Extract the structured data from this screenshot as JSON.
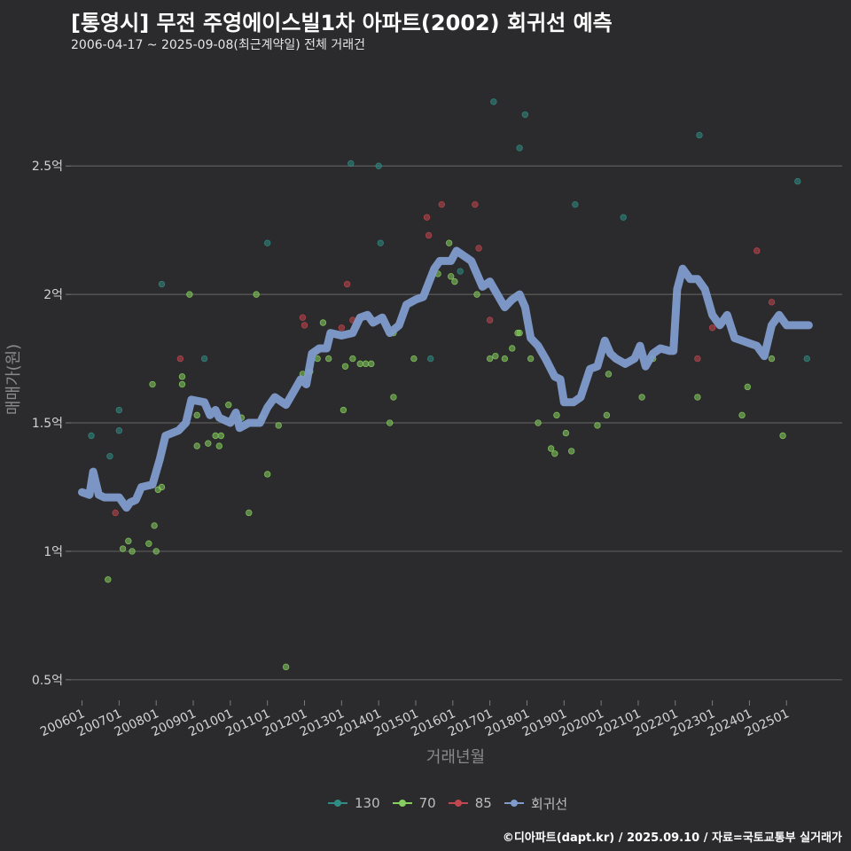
{
  "header": {
    "title": "[통영시] 무전 주영에이스빌1차 아파트(2002) 회귀선 예측",
    "subtitle": "2006-04-17 ~ 2025-09-08(최근계약일) 전체 거래건"
  },
  "caption": "©디아파트(dapt.kr) / 2025.09.10 / 자료=국토교통부 실거래가",
  "colors": {
    "background": "#2b2a2c",
    "grid": "#5c5c5c",
    "s130": "#2f8c84",
    "s70": "#86cf5e",
    "s85": "#c0464f",
    "regression": "#7f9ccc"
  },
  "chart_data": {
    "type": "scatter",
    "xlabel": "거래년월",
    "ylabel": "매매가(원)",
    "xlim": [
      2005.7,
      2026.5
    ],
    "ylim": [
      0.42,
      2.87
    ],
    "grid": true,
    "legend_position": "bottom",
    "x_ticks": [
      {
        "x": 2006.0,
        "label": "200601"
      },
      {
        "x": 2007.0,
        "label": "200701"
      },
      {
        "x": 2008.0,
        "label": "200801"
      },
      {
        "x": 2009.0,
        "label": "200901"
      },
      {
        "x": 2010.0,
        "label": "201001"
      },
      {
        "x": 2011.0,
        "label": "201101"
      },
      {
        "x": 2012.0,
        "label": "201201"
      },
      {
        "x": 2013.0,
        "label": "201301"
      },
      {
        "x": 2014.0,
        "label": "201401"
      },
      {
        "x": 2015.0,
        "label": "201501"
      },
      {
        "x": 2016.0,
        "label": "201601"
      },
      {
        "x": 2017.0,
        "label": "201701"
      },
      {
        "x": 2018.0,
        "label": "201801"
      },
      {
        "x": 2019.0,
        "label": "201901"
      },
      {
        "x": 2020.0,
        "label": "202001"
      },
      {
        "x": 2021.0,
        "label": "202101"
      },
      {
        "x": 2022.0,
        "label": "202201"
      },
      {
        "x": 2023.0,
        "label": "202301"
      },
      {
        "x": 2024.0,
        "label": "202401"
      },
      {
        "x": 2025.0,
        "label": "202501"
      }
    ],
    "y_ticks": [
      {
        "y": 0.5,
        "label": "0.5억"
      },
      {
        "y": 1.0,
        "label": "1억"
      },
      {
        "y": 1.5,
        "label": "1.5억"
      },
      {
        "y": 2.0,
        "label": "2억"
      },
      {
        "y": 2.5,
        "label": "2.5억"
      }
    ],
    "series": [
      {
        "name": "130",
        "color": "#2f8c84",
        "points": [
          [
            2006.25,
            1.45
          ],
          [
            2006.75,
            1.37
          ],
          [
            2007.0,
            1.55
          ],
          [
            2007.0,
            1.47
          ],
          [
            2009.3,
            1.75
          ],
          [
            2011.0,
            2.2
          ],
          [
            2013.25,
            2.51
          ],
          [
            2014.0,
            2.5
          ],
          [
            2014.05,
            2.2
          ],
          [
            2015.4,
            1.75
          ],
          [
            2017.1,
            2.75
          ],
          [
            2017.8,
            2.57
          ],
          [
            2017.95,
            2.7
          ],
          [
            2019.3,
            2.35
          ],
          [
            2020.6,
            2.3
          ],
          [
            2022.65,
            2.62
          ],
          [
            2025.3,
            2.44
          ],
          [
            2025.55,
            1.75
          ],
          [
            2008.15,
            2.04
          ],
          [
            2016.2,
            2.09
          ]
        ]
      },
      {
        "name": "70",
        "color": "#86cf5e",
        "points": [
          [
            2006.7,
            0.89
          ],
          [
            2007.1,
            1.01
          ],
          [
            2007.25,
            1.04
          ],
          [
            2007.35,
            1.0
          ],
          [
            2007.8,
            1.03
          ],
          [
            2007.95,
            1.1
          ],
          [
            2008.0,
            1.0
          ],
          [
            2008.05,
            1.24
          ],
          [
            2008.15,
            1.25
          ],
          [
            2007.9,
            1.65
          ],
          [
            2008.7,
            1.68
          ],
          [
            2008.7,
            1.65
          ],
          [
            2008.9,
            2.0
          ],
          [
            2009.1,
            1.41
          ],
          [
            2009.1,
            1.53
          ],
          [
            2009.4,
            1.42
          ],
          [
            2009.6,
            1.45
          ],
          [
            2009.7,
            1.41
          ],
          [
            2009.75,
            1.45
          ],
          [
            2009.95,
            1.57
          ],
          [
            2010.3,
            1.52
          ],
          [
            2010.5,
            1.15
          ],
          [
            2010.7,
            2.0
          ],
          [
            2010.85,
            1.52
          ],
          [
            2011.0,
            1.3
          ],
          [
            2011.3,
            1.49
          ],
          [
            2011.5,
            0.55
          ],
          [
            2011.95,
            1.69
          ],
          [
            2012.15,
            1.7
          ],
          [
            2012.35,
            1.75
          ],
          [
            2012.5,
            1.89
          ],
          [
            2012.65,
            1.75
          ],
          [
            2013.05,
            1.55
          ],
          [
            2013.1,
            1.72
          ],
          [
            2013.3,
            1.75
          ],
          [
            2013.5,
            1.73
          ],
          [
            2013.65,
            1.73
          ],
          [
            2013.8,
            1.73
          ],
          [
            2014.3,
            1.5
          ],
          [
            2014.4,
            1.85
          ],
          [
            2014.4,
            1.6
          ],
          [
            2014.95,
            1.75
          ],
          [
            2015.6,
            2.08
          ],
          [
            2015.9,
            2.2
          ],
          [
            2015.95,
            2.07
          ],
          [
            2016.05,
            2.05
          ],
          [
            2016.65,
            2.0
          ],
          [
            2017.0,
            1.75
          ],
          [
            2017.15,
            1.76
          ],
          [
            2017.4,
            1.75
          ],
          [
            2017.6,
            1.79
          ],
          [
            2017.75,
            1.85
          ],
          [
            2017.8,
            1.85
          ],
          [
            2018.1,
            1.75
          ],
          [
            2018.3,
            1.5
          ],
          [
            2018.65,
            1.4
          ],
          [
            2018.75,
            1.38
          ],
          [
            2018.8,
            1.53
          ],
          [
            2019.05,
            1.46
          ],
          [
            2019.2,
            1.39
          ],
          [
            2019.9,
            1.49
          ],
          [
            2020.15,
            1.53
          ],
          [
            2020.2,
            1.69
          ],
          [
            2021.1,
            1.6
          ],
          [
            2022.6,
            1.6
          ],
          [
            2023.8,
            1.53
          ],
          [
            2023.95,
            1.64
          ],
          [
            2024.6,
            1.75
          ],
          [
            2024.9,
            1.45
          ],
          [
            2021.4,
            1.75
          ]
        ]
      },
      {
        "name": "85",
        "color": "#c0464f",
        "points": [
          [
            2006.9,
            1.15
          ],
          [
            2008.65,
            1.75
          ],
          [
            2011.95,
            1.91
          ],
          [
            2012.0,
            1.88
          ],
          [
            2012.35,
            1.78
          ],
          [
            2013.0,
            1.87
          ],
          [
            2013.15,
            2.04
          ],
          [
            2013.3,
            1.9
          ],
          [
            2015.3,
            2.3
          ],
          [
            2015.35,
            2.23
          ],
          [
            2015.7,
            2.35
          ],
          [
            2016.6,
            2.35
          ],
          [
            2016.7,
            2.18
          ],
          [
            2017.0,
            1.9
          ],
          [
            2022.6,
            1.75
          ],
          [
            2024.2,
            2.17
          ],
          [
            2024.6,
            1.97
          ],
          [
            2023.0,
            1.87
          ]
        ]
      }
    ],
    "regression": {
      "name": "회귀선",
      "color": "#7f9ccc",
      "points": [
        [
          2006.0,
          1.23
        ],
        [
          2006.2,
          1.22
        ],
        [
          2006.3,
          1.31
        ],
        [
          2006.45,
          1.22
        ],
        [
          2006.6,
          1.21
        ],
        [
          2007.0,
          1.21
        ],
        [
          2007.2,
          1.17
        ],
        [
          2007.3,
          1.19
        ],
        [
          2007.45,
          1.2
        ],
        [
          2007.6,
          1.25
        ],
        [
          2007.9,
          1.26
        ],
        [
          2008.1,
          1.36
        ],
        [
          2008.25,
          1.45
        ],
        [
          2008.6,
          1.47
        ],
        [
          2008.8,
          1.5
        ],
        [
          2008.95,
          1.59
        ],
        [
          2009.3,
          1.58
        ],
        [
          2009.45,
          1.53
        ],
        [
          2009.6,
          1.55
        ],
        [
          2009.7,
          1.52
        ],
        [
          2010.0,
          1.5
        ],
        [
          2010.15,
          1.54
        ],
        [
          2010.25,
          1.48
        ],
        [
          2010.5,
          1.5
        ],
        [
          2010.8,
          1.5
        ],
        [
          2011.0,
          1.56
        ],
        [
          2011.2,
          1.6
        ],
        [
          2011.5,
          1.57
        ],
        [
          2011.7,
          1.62
        ],
        [
          2011.9,
          1.67
        ],
        [
          2012.05,
          1.65
        ],
        [
          2012.2,
          1.77
        ],
        [
          2012.4,
          1.79
        ],
        [
          2012.6,
          1.79
        ],
        [
          2012.7,
          1.85
        ],
        [
          2013.0,
          1.84
        ],
        [
          2013.3,
          1.85
        ],
        [
          2013.5,
          1.91
        ],
        [
          2013.7,
          1.92
        ],
        [
          2013.85,
          1.89
        ],
        [
          2014.1,
          1.91
        ],
        [
          2014.3,
          1.85
        ],
        [
          2014.55,
          1.88
        ],
        [
          2014.75,
          1.96
        ],
        [
          2015.0,
          1.98
        ],
        [
          2015.2,
          1.99
        ],
        [
          2015.5,
          2.1
        ],
        [
          2015.65,
          2.13
        ],
        [
          2015.95,
          2.13
        ],
        [
          2016.1,
          2.17
        ],
        [
          2016.3,
          2.15
        ],
        [
          2016.5,
          2.13
        ],
        [
          2016.65,
          2.08
        ],
        [
          2016.8,
          2.03
        ],
        [
          2017.0,
          2.05
        ],
        [
          2017.2,
          2.0
        ],
        [
          2017.4,
          1.95
        ],
        [
          2017.6,
          1.98
        ],
        [
          2017.8,
          2.0
        ],
        [
          2017.95,
          1.95
        ],
        [
          2018.1,
          1.83
        ],
        [
          2018.3,
          1.8
        ],
        [
          2018.5,
          1.75
        ],
        [
          2018.75,
          1.68
        ],
        [
          2018.9,
          1.67
        ],
        [
          2019.0,
          1.58
        ],
        [
          2019.25,
          1.58
        ],
        [
          2019.45,
          1.6
        ],
        [
          2019.7,
          1.71
        ],
        [
          2019.9,
          1.72
        ],
        [
          2020.1,
          1.82
        ],
        [
          2020.25,
          1.77
        ],
        [
          2020.4,
          1.75
        ],
        [
          2020.65,
          1.73
        ],
        [
          2020.9,
          1.75
        ],
        [
          2021.05,
          1.8
        ],
        [
          2021.2,
          1.72
        ],
        [
          2021.4,
          1.77
        ],
        [
          2021.6,
          1.79
        ],
        [
          2021.85,
          1.78
        ],
        [
          2021.95,
          1.78
        ],
        [
          2022.05,
          2.02
        ],
        [
          2022.2,
          2.1
        ],
        [
          2022.4,
          2.06
        ],
        [
          2022.6,
          2.06
        ],
        [
          2022.8,
          2.02
        ],
        [
          2023.0,
          1.92
        ],
        [
          2023.2,
          1.88
        ],
        [
          2023.4,
          1.92
        ],
        [
          2023.6,
          1.83
        ],
        [
          2023.8,
          1.82
        ],
        [
          2024.0,
          1.81
        ],
        [
          2024.2,
          1.8
        ],
        [
          2024.4,
          1.76
        ],
        [
          2024.6,
          1.88
        ],
        [
          2024.8,
          1.92
        ],
        [
          2025.0,
          1.88
        ],
        [
          2025.3,
          1.88
        ],
        [
          2025.6,
          1.88
        ]
      ]
    }
  }
}
